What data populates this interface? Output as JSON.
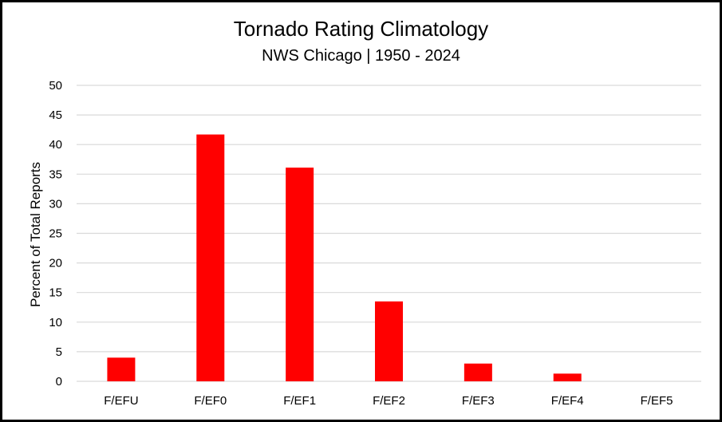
{
  "chart_data": {
    "type": "bar",
    "title": "Tornado Rating Climatology",
    "subtitle": "NWS Chicago | 1950 - 2024",
    "xlabel": "",
    "ylabel": "Percent of Total Reports",
    "categories": [
      "F/EFU",
      "F/EF0",
      "F/EF1",
      "F/EF2",
      "F/EF3",
      "F/EF4",
      "F/EF5"
    ],
    "values": [
      4.0,
      41.7,
      36.1,
      13.5,
      3.0,
      1.3,
      0
    ],
    "ylim": [
      0,
      50
    ],
    "yticks": [
      "0",
      "5",
      "10",
      "15",
      "20",
      "25",
      "30",
      "35",
      "40",
      "45",
      "50"
    ],
    "grid": true,
    "legend": "none",
    "bar_color": "#ff0000",
    "grid_color": "#d9d9d9"
  }
}
